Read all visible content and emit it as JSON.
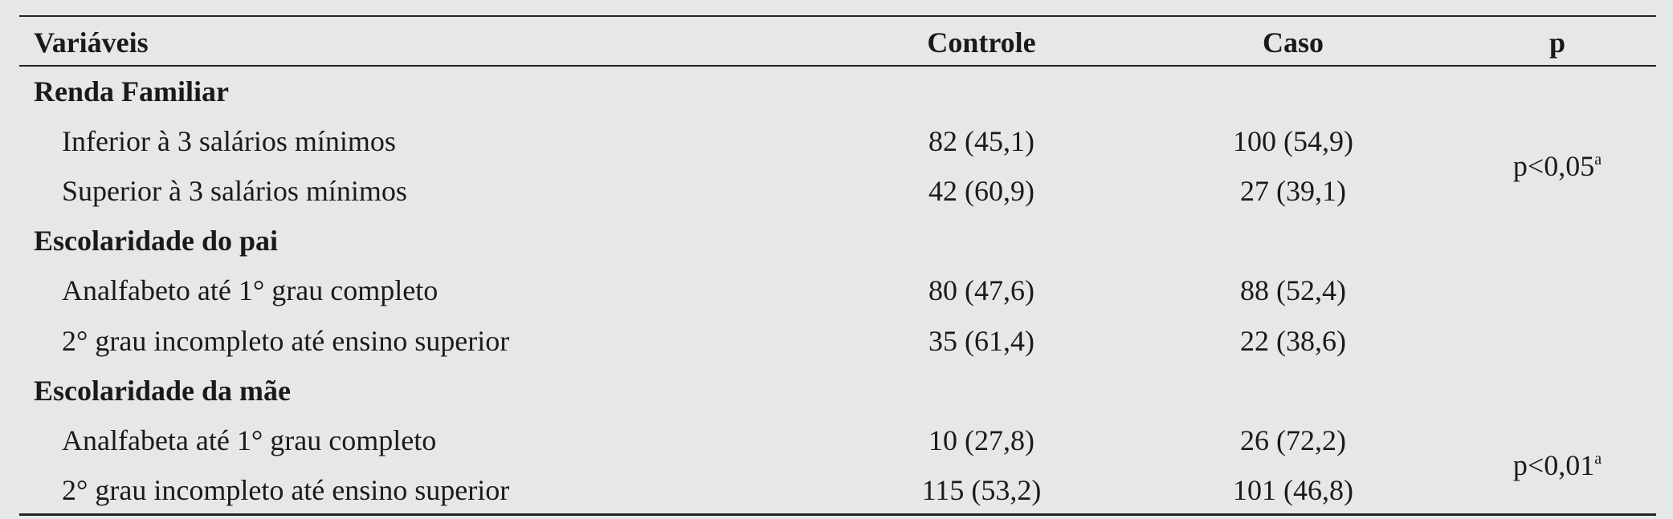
{
  "header": {
    "columns": [
      "Variáveis",
      "Controle",
      "Caso",
      "p"
    ]
  },
  "sections": [
    {
      "title": "Renda Familiar",
      "rows": [
        [
          "Inferior à 3 salários mínimos",
          "82 (45,1)",
          "100 (54,9)"
        ],
        [
          "Superior à 3 salários mínimos",
          "42 (60,9)",
          "27 (39,1)"
        ]
      ],
      "p": {
        "text": "p<0,05",
        "note": "a"
      }
    },
    {
      "title": "Escolaridade do pai",
      "rows": [
        [
          "Analfabeto até 1° grau completo",
          "80 (47,6)",
          "88 (52,4)"
        ],
        [
          "2° grau incompleto até ensino superior",
          "35 (61,4)",
          "22 (38,6)"
        ]
      ]
    },
    {
      "title": "Escolaridade da mãe",
      "rows": [
        [
          "Analfabeta até 1° grau completo",
          "10 (27,8)",
          "26 (72,2)"
        ],
        [
          "2° grau incompleto até ensino superior",
          "115 (53,2)",
          "101 (46,8)"
        ]
      ],
      "p": {
        "text": "p<0,01",
        "note": "a"
      }
    }
  ]
}
